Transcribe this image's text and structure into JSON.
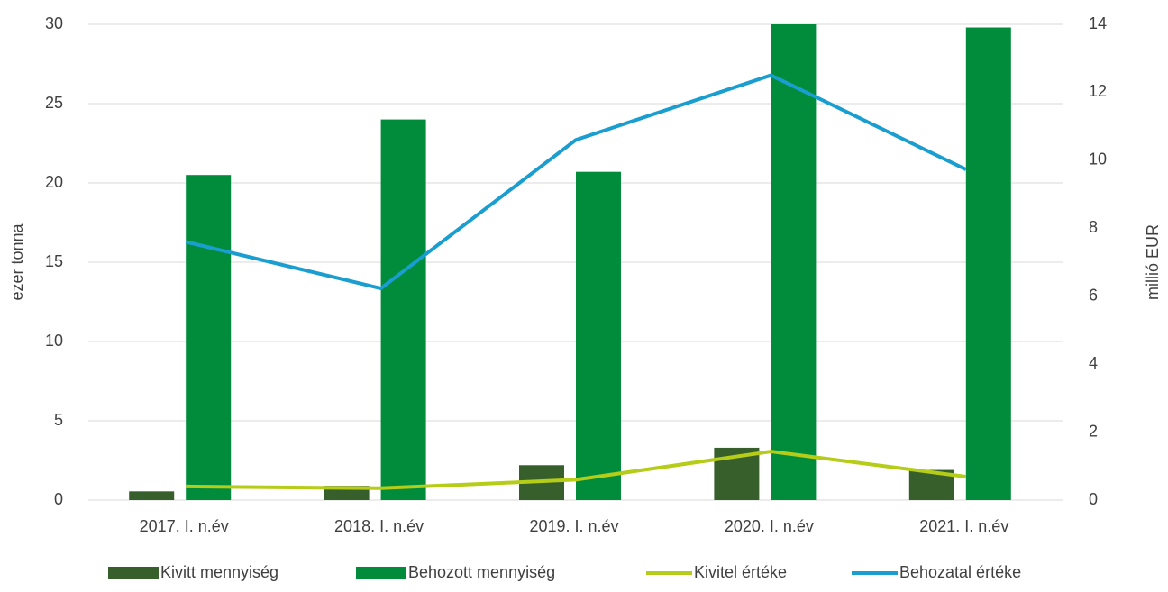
{
  "chart_data": {
    "type": "bar",
    "categories": [
      "2017. I. n.év",
      "2018. I. n.év",
      "2019. I. n.év",
      "2020. I. n.év",
      "2021. I. n.év"
    ],
    "series": [
      {
        "name": "Kivitt mennyiség",
        "color": "#375f2b",
        "type": "bar",
        "values": [
          0.55,
          0.9,
          2.2,
          3.3,
          1.9
        ]
      },
      {
        "name": "Behozott mennyiség",
        "color": "#008c3a",
        "type": "bar",
        "values": [
          20.5,
          24.0,
          20.7,
          30.0,
          29.8
        ]
      },
      {
        "name": "Kivitel értéke",
        "color": "#b5cc18",
        "type": "line",
        "axis": "y2",
        "values": [
          0.4,
          0.35,
          0.6,
          1.43,
          0.69
        ]
      },
      {
        "name": "Behozatal értéke",
        "color": "#1a9ecf",
        "type": "line",
        "axis": "y2",
        "values": [
          7.6,
          6.23,
          10.6,
          12.5,
          9.73
        ]
      }
    ],
    "y_label": "ezer tonna",
    "y2_label": "millió EUR",
    "ylim": [
      0,
      30
    ],
    "yticks": [
      0,
      5,
      10,
      15,
      20,
      25,
      30
    ],
    "y2lim": [
      0,
      14
    ],
    "y2ticks": [
      0,
      2,
      4,
      6,
      8,
      10,
      12,
      14
    ],
    "grid": true,
    "legend": "bottom"
  }
}
